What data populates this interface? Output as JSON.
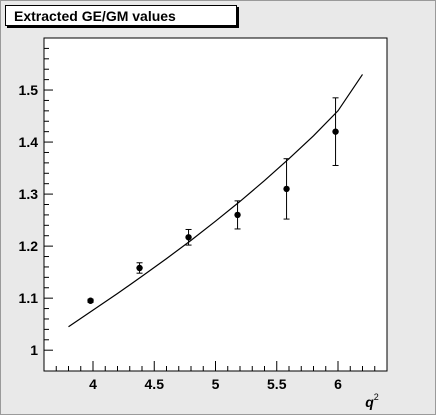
{
  "chart_data": {
    "type": "scatter",
    "title": "Extracted GE/GM values",
    "xlabel": "q",
    "xlabel_superscript": "2",
    "ylabel": "",
    "xlim": [
      3.6,
      6.4
    ],
    "ylim": [
      0.96,
      1.6
    ],
    "x_ticks": [
      {
        "value": 4,
        "label": "4"
      },
      {
        "value": 4.5,
        "label": "4.5"
      },
      {
        "value": 5,
        "label": "5"
      },
      {
        "value": 5.5,
        "label": "5.5"
      },
      {
        "value": 6,
        "label": "6"
      }
    ],
    "y_ticks": [
      {
        "value": 1.0,
        "label": "1"
      },
      {
        "value": 1.1,
        "label": "1.1"
      },
      {
        "value": 1.2,
        "label": "1.2"
      },
      {
        "value": 1.3,
        "label": "1.3"
      },
      {
        "value": 1.4,
        "label": "1.4"
      },
      {
        "value": 1.5,
        "label": "1.5"
      }
    ],
    "grid": false,
    "points": [
      {
        "x": 3.98,
        "y": 1.095,
        "err": 0.003
      },
      {
        "x": 4.38,
        "y": 1.158,
        "err": 0.01
      },
      {
        "x": 4.78,
        "y": 1.217,
        "err": 0.015
      },
      {
        "x": 5.18,
        "y": 1.26,
        "err": 0.027
      },
      {
        "x": 5.58,
        "y": 1.31,
        "err": 0.058
      },
      {
        "x": 5.98,
        "y": 1.42,
        "err": 0.065
      }
    ],
    "curve": {
      "x": [
        3.8,
        4.0,
        4.2,
        4.4,
        4.6,
        4.8,
        5.0,
        5.2,
        5.4,
        5.6,
        5.8,
        6.0,
        6.2
      ],
      "y": [
        1.045,
        1.077,
        1.109,
        1.142,
        1.176,
        1.211,
        1.248,
        1.286,
        1.326,
        1.368,
        1.412,
        1.46,
        1.53
      ]
    }
  }
}
